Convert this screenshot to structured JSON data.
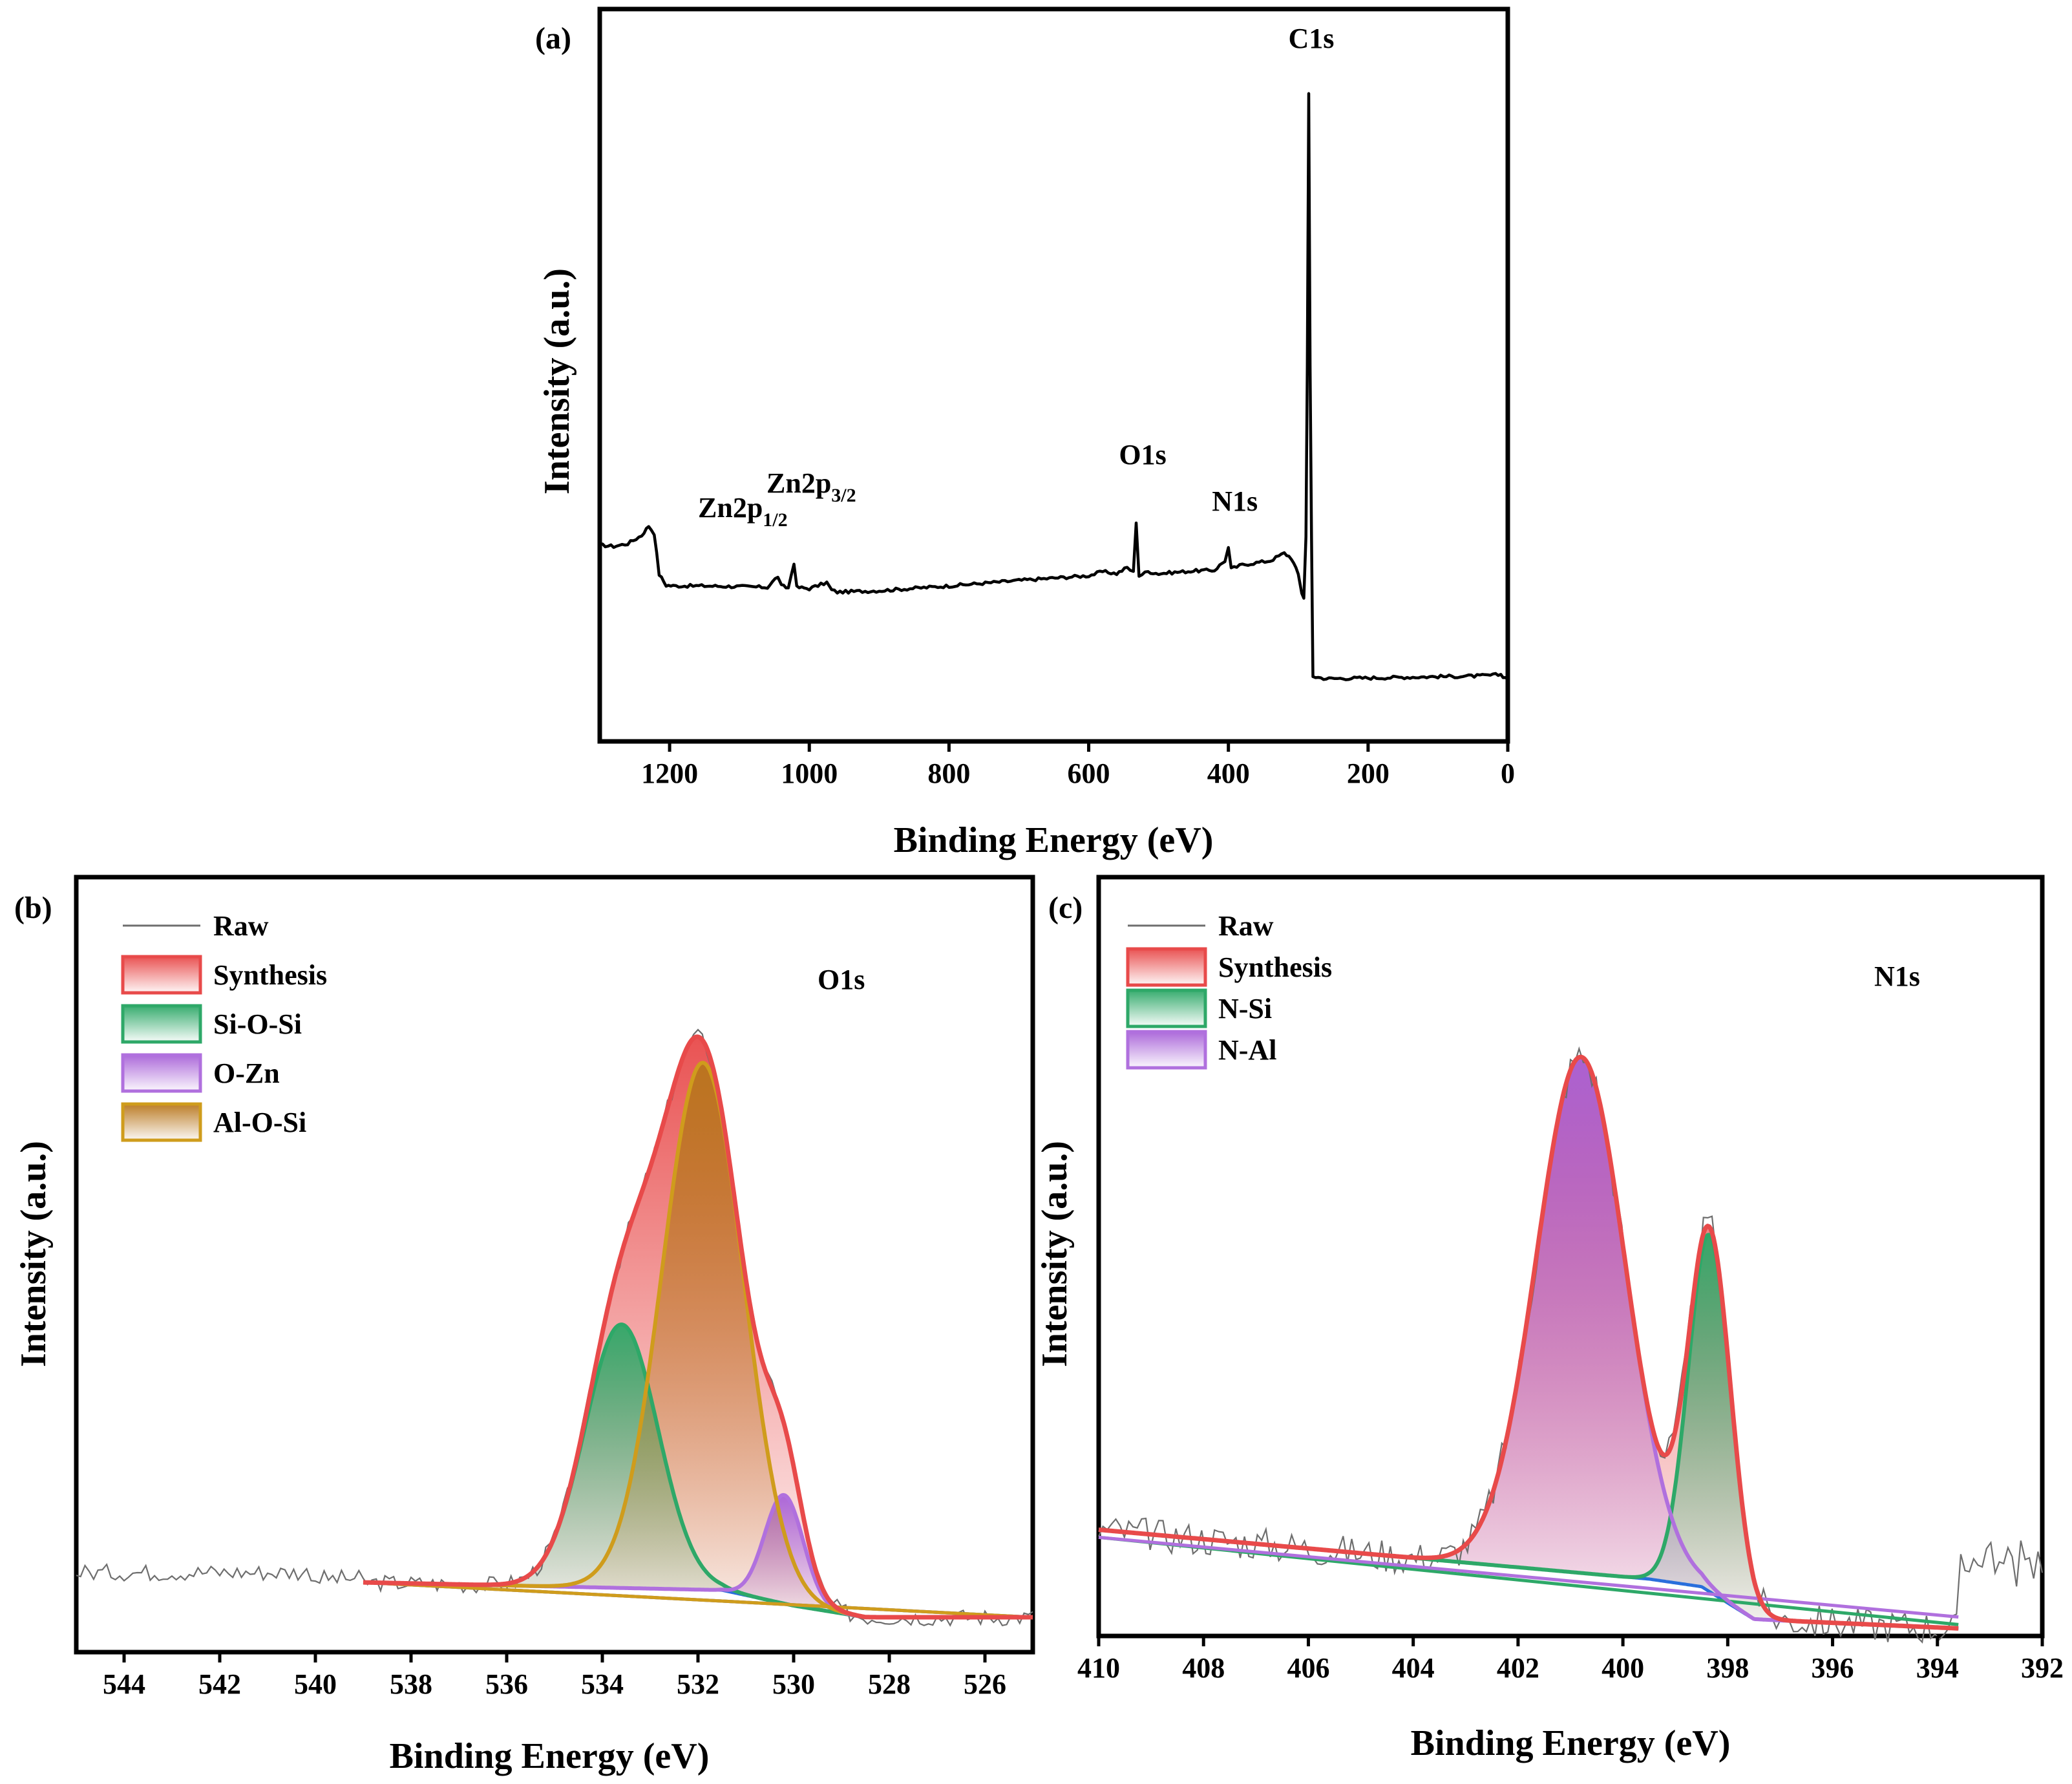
{
  "colors": {
    "raw": "#6e6e6e",
    "synthesis": "#e84a4a",
    "si_o_si": "#2ea868",
    "o_zn": "#b070de",
    "al_o_si": "#cf9c1c",
    "n_si": "#2ea868",
    "n_al": "#b070de",
    "background": "#2a6fdc"
  },
  "chart_data": [
    {
      "panel": "(a)",
      "type": "line",
      "xlabel": "Binding Energy (eV)",
      "ylabel": "Intensity (a.u.)",
      "xlim": [
        1300,
        0
      ],
      "x_ticks": [
        1200,
        1000,
        800,
        600,
        400,
        200,
        0
      ],
      "peak_labels": [
        {
          "text": "C1s",
          "x": 285
        },
        {
          "text": "O1s",
          "x": 532
        },
        {
          "text": "N1s",
          "x": 400
        },
        {
          "main": "Zn2p",
          "sub": "1/2",
          "x": 1045
        },
        {
          "main": "Zn2p",
          "sub": "3/2",
          "x": 1022
        }
      ],
      "series": [
        {
          "x": [
            1300,
            1280,
            1260,
            1240,
            1230,
            1222,
            1215,
            1205,
            1195,
            1150,
            1100,
            1060,
            1045,
            1040,
            1030,
            1022,
            1018,
            1000,
            975,
            968,
            960,
            900,
            800,
            700,
            600,
            580,
            560,
            545,
            536,
            532,
            528,
            515,
            500,
            450,
            420,
            405,
            400,
            396,
            380,
            340,
            320,
            310,
            300,
            295,
            292,
            289,
            287,
            285,
            283,
            281,
            279,
            260,
            200,
            100,
            40,
            10,
            0
          ],
          "y": [
            28.8,
            28.6,
            29.0,
            30.2,
            31.6,
            30.5,
            24.5,
            22.9,
            22.8,
            22.8,
            22.7,
            22.6,
            24.2,
            22.8,
            22.5,
            26.2,
            22.6,
            22.4,
            23.3,
            22.2,
            21.9,
            22.1,
            22.8,
            23.6,
            24.3,
            24.9,
            24.6,
            25.5,
            24.8,
            32.2,
            24.3,
            24.9,
            24.6,
            25.0,
            25.1,
            26.5,
            28.4,
            25.3,
            25.9,
            26.5,
            27.6,
            26.9,
            24.5,
            21.8,
            21.0,
            30.0,
            55.0,
            95.0,
            55.0,
            30.0,
            9.5,
            9.2,
            9.3,
            9.5,
            9.6,
            9.8,
            9.1
          ]
        }
      ]
    },
    {
      "panel": "(b)",
      "type": "line",
      "annotation": "O1s",
      "xlabel": "Binding Energy (eV)",
      "ylabel": "Intensity (a.u.)",
      "xlim": [
        545,
        525
      ],
      "ylim": [
        0,
        100
      ],
      "x_ticks": [
        544,
        542,
        540,
        538,
        536,
        534,
        532,
        530,
        528,
        526
      ],
      "fit_range": [
        539,
        525
      ],
      "series": [
        {
          "name": "Raw",
          "raw_range": [
            545,
            525
          ]
        },
        {
          "name": "Synthesis",
          "composition": "sum of components"
        },
        {
          "name": "Si-O-Si",
          "center": 533.6,
          "height": 34,
          "fwhm": 1.8
        },
        {
          "name": "O-Zn",
          "center": 530.2,
          "height": 14,
          "fwhm": 0.95
        },
        {
          "name": "Al-O-Si",
          "center": 531.9,
          "height": 68,
          "fwhm": 2.0
        }
      ],
      "baseline": {
        "x": [
          539,
          531.5,
          530,
          528.5,
          525
        ],
        "y": [
          9.0,
          8.0,
          6.0,
          4.5,
          4.5
        ]
      }
    },
    {
      "panel": "(c)",
      "type": "line",
      "annotation": "N1s",
      "xlabel": "Binding Energy (eV)",
      "ylabel": "Intensity (a.u.)",
      "xlim": [
        410,
        392
      ],
      "ylim": [
        0,
        100
      ],
      "x_ticks": [
        410,
        408,
        406,
        404,
        402,
        400,
        398,
        396,
        394,
        392
      ],
      "fit_range": [
        410,
        393.6
      ],
      "series": [
        {
          "name": "Raw",
          "raw_range": [
            410,
            392
          ]
        },
        {
          "name": "Synthesis",
          "composition": "sum of components"
        },
        {
          "name": "N-Si",
          "center": 398.35,
          "height": 47,
          "fwhm": 0.95
        },
        {
          "name": "N-Al",
          "center": 400.8,
          "height": 68,
          "fwhm": 2.0
        }
      ],
      "baseline": {
        "x": [
          410,
          399.5,
          398.5,
          397.5,
          393.6
        ],
        "y": [
          14,
          7.5,
          6.5,
          2.2,
          1.0
        ]
      }
    }
  ]
}
